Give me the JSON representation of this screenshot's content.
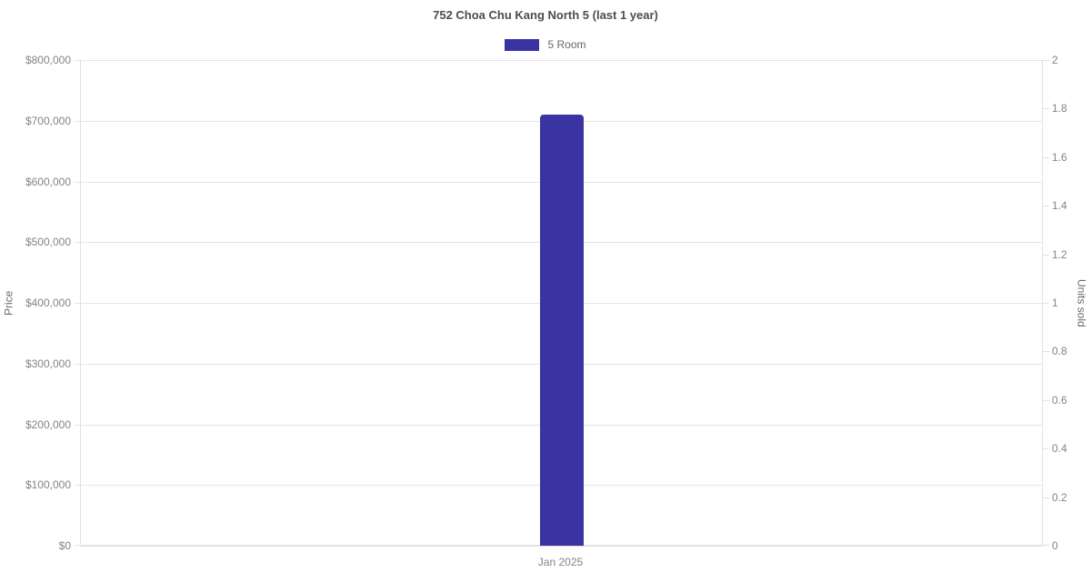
{
  "chart_data": {
    "type": "bar",
    "title": "752 Choa Chu Kang North 5 (last 1 year)",
    "categories": [
      "Jan 2025"
    ],
    "series": [
      {
        "name": "5 Room",
        "values": [
          710000
        ],
        "color": "#3a34a3"
      }
    ],
    "xlabel": "",
    "ylabel_left": "Price",
    "ylabel_right": "Units sold",
    "y_left": {
      "min": 0,
      "max": 800000,
      "step": 100000,
      "tick_labels": [
        "$0",
        "$100,000",
        "$200,000",
        "$300,000",
        "$400,000",
        "$500,000",
        "$600,000",
        "$700,000",
        "$800,000"
      ]
    },
    "y_right": {
      "min": 0,
      "max": 2,
      "step": 0.2,
      "tick_labels": [
        "0",
        "0.2",
        "0.4",
        "0.6",
        "0.8",
        "1",
        "1.2",
        "1.4",
        "1.6",
        "1.8",
        "2"
      ]
    },
    "grid": true,
    "legend_position": "top",
    "colors": {
      "bar": "#3a34a3",
      "grid": "#e5e5e5",
      "axis_line": "#e0e0e0",
      "tick_text": "#848484",
      "title_text": "#4d4d4d",
      "axis_title_text": "#6b6b6b"
    }
  }
}
